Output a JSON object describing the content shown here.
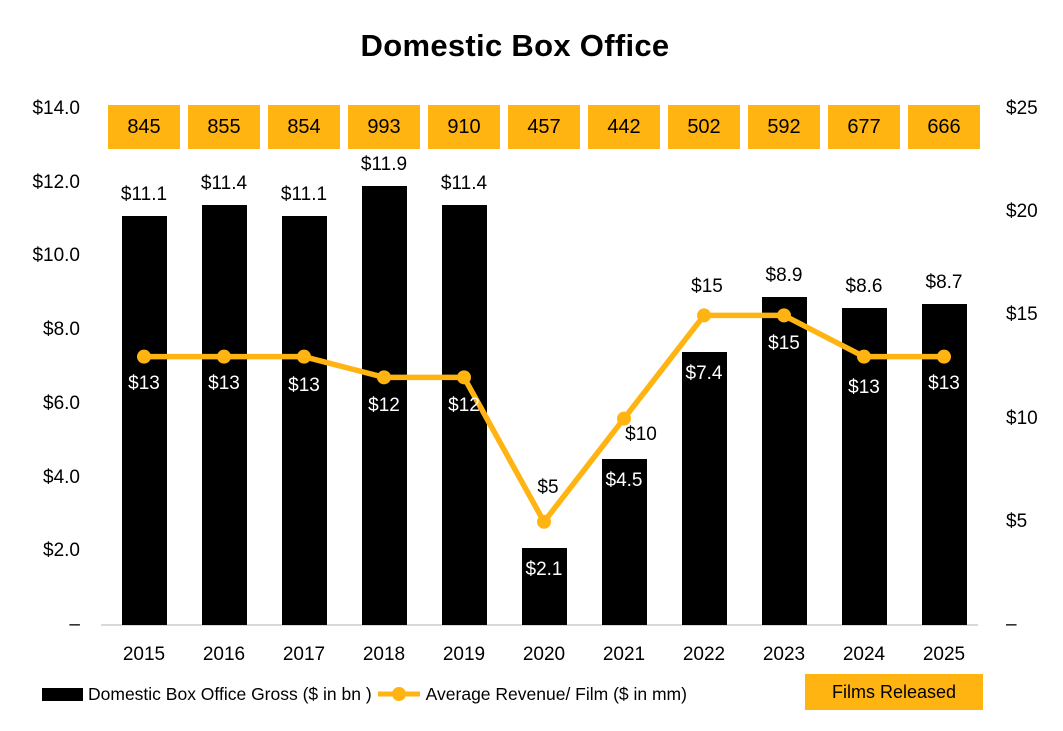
{
  "title": "Domestic Box Office",
  "legend": {
    "bar_label": "Domestic Box Office Gross ($ in bn )",
    "line_label": "Average Revenue/ Film ($ in mm)",
    "films_label": "Films Released"
  },
  "colors": {
    "accent_orange": "#FFB412",
    "bar_black": "#000000",
    "axis_line_gray": "#D9D9D9",
    "label_white": "#FFFFFF",
    "text_black": "#000000",
    "background": "#FFFFFF"
  },
  "chart_data": {
    "type": "bar",
    "subtype": "combo-bar-line-with-category-badges",
    "title": "Domestic Box Office",
    "categories": [
      "2015",
      "2016",
      "2017",
      "2018",
      "2019",
      "2020",
      "2021",
      "2022",
      "2023",
      "2024",
      "2025"
    ],
    "series": [
      {
        "name": "Domestic Box Office Gross ($ in bn )",
        "type": "bar",
        "axis": "left",
        "values": [
          11.1,
          11.4,
          11.1,
          11.9,
          11.4,
          2.1,
          4.5,
          7.4,
          8.9,
          8.6,
          8.7
        ],
        "data_labels": [
          "$11.1",
          "$11.4",
          "$11.1",
          "$11.9",
          "$11.4",
          "$2.1",
          "$4.5",
          "$7.4",
          "$8.9",
          "$8.6",
          "$8.7"
        ],
        "label_placement": [
          "above",
          "above",
          "above",
          "above",
          "above",
          "inside",
          "inside",
          "inside",
          "above",
          "above",
          "above"
        ]
      },
      {
        "name": "Average Revenue/ Film ($ in mm)",
        "type": "line",
        "axis": "right",
        "values": [
          13,
          13,
          13,
          12,
          12,
          5,
          10,
          15,
          15,
          13,
          13
        ],
        "data_labels": [
          "$13",
          "$13",
          "$13",
          "$12",
          "$12",
          "$5",
          "$10",
          "$15",
          "$15",
          "$13",
          "$13"
        ],
        "label_color": [
          "white",
          "white",
          "white",
          "white",
          "white",
          "black",
          "black",
          "black",
          "white",
          "white",
          "white"
        ],
        "label_offsets": [
          [
            0,
            27
          ],
          [
            0,
            27
          ],
          [
            0,
            29
          ],
          [
            0,
            29
          ],
          [
            0,
            29
          ],
          [
            4,
            -34
          ],
          [
            17,
            16
          ],
          [
            3,
            -28
          ],
          [
            0,
            29
          ],
          [
            0,
            31
          ],
          [
            0,
            27
          ]
        ]
      },
      {
        "name": "Films Released",
        "type": "category-badges",
        "values": [
          845,
          855,
          854,
          993,
          910,
          457,
          442,
          502,
          592,
          677,
          666
        ]
      }
    ],
    "left_axis": {
      "max": 14,
      "tick_labels": [
        "$14.0",
        "$12.0",
        "$10.0",
        "$8.0",
        "$6.0",
        "$4.0",
        "$2.0",
        "–"
      ],
      "tick_values": [
        14,
        12,
        10,
        8,
        6,
        4,
        2,
        0
      ]
    },
    "right_axis": {
      "max": 25,
      "tick_labels": [
        "$25",
        "$20",
        "$15",
        "$10",
        "$5",
        "–"
      ],
      "tick_values": [
        25,
        20,
        15,
        10,
        5,
        0
      ]
    },
    "gridlines": false,
    "legend_position": "bottom"
  }
}
